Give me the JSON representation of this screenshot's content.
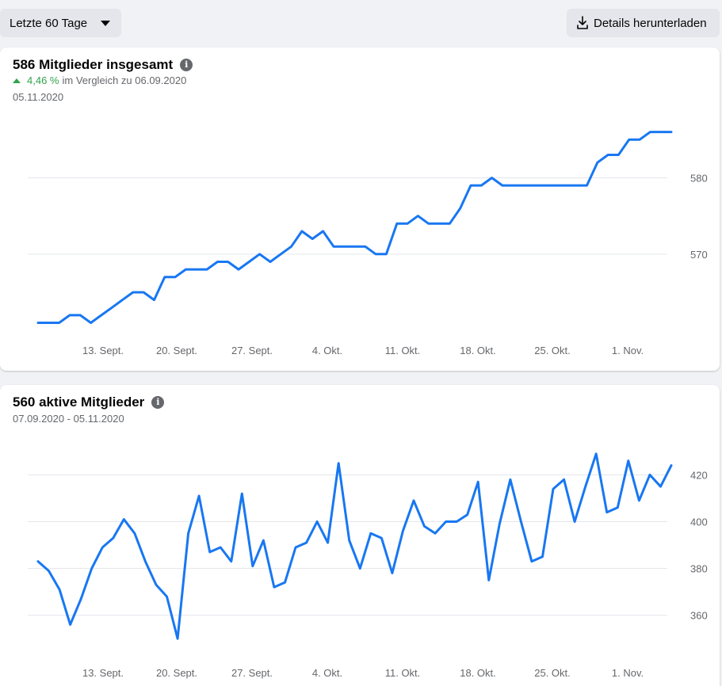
{
  "toolbar": {
    "range_label": "Letzte 60 Tage",
    "download_label": "Details herunterladen"
  },
  "colors": {
    "line": "#1877f2",
    "positive": "#31a24c"
  },
  "card1": {
    "title": "586 Mitglieder insgesamt",
    "change_pct": "4,46 %",
    "change_text": "im Vergleich zu 06.09.2020",
    "date": "05.11.2020"
  },
  "card2": {
    "title": "560 aktive Mitglieder",
    "date_range": "07.09.2020 - 05.11.2020"
  },
  "chart_data": [
    {
      "type": "line",
      "title": "586 Mitglieder insgesamt",
      "x_tick_labels": [
        "13. Sept.",
        "20. Sept.",
        "27. Sept.",
        "4. Okt.",
        "11. Okt.",
        "18. Okt.",
        "25. Okt.",
        "1. Nov."
      ],
      "y_ticks": [
        570,
        580
      ],
      "ylim": [
        559.5,
        587
      ],
      "grid": true,
      "series": [
        {
          "values": [
            561,
            561,
            561,
            562,
            562,
            561,
            562,
            563,
            564,
            565,
            565,
            564,
            567,
            567,
            568,
            568,
            568,
            569,
            569,
            568,
            569,
            570,
            569,
            570,
            571,
            573,
            572,
            573,
            571,
            571,
            571,
            571,
            570,
            570,
            574,
            574,
            575,
            574,
            574,
            574,
            576,
            579,
            579,
            580,
            579,
            579,
            579,
            579,
            579,
            579,
            579,
            579,
            579,
            582,
            583,
            583,
            585,
            585,
            586,
            586,
            586
          ]
        }
      ]
    },
    {
      "type": "line",
      "title": "560 aktive Mitglieder",
      "x_tick_labels": [
        "13. Sept.",
        "20. Sept.",
        "27. Sept.",
        "4. Okt.",
        "11. Okt.",
        "18. Okt.",
        "25. Okt.",
        "1. Nov."
      ],
      "y_ticks": [
        360,
        380,
        400,
        420
      ],
      "ylim": [
        345,
        432
      ],
      "grid": true,
      "series": [
        {
          "values": [
            383,
            379,
            371,
            356,
            367,
            380,
            389,
            393,
            401,
            395,
            383,
            373,
            368,
            350,
            395,
            411,
            387,
            389,
            383,
            412,
            381,
            392,
            372,
            374,
            389,
            391,
            400,
            391,
            425,
            392,
            380,
            395,
            393,
            378,
            396,
            409,
            398,
            395,
            400,
            400,
            403,
            417,
            375,
            399,
            418,
            400,
            383,
            385,
            414,
            418,
            400,
            415,
            429,
            404,
            406,
            426,
            409,
            420,
            415,
            424
          ]
        }
      ]
    }
  ]
}
